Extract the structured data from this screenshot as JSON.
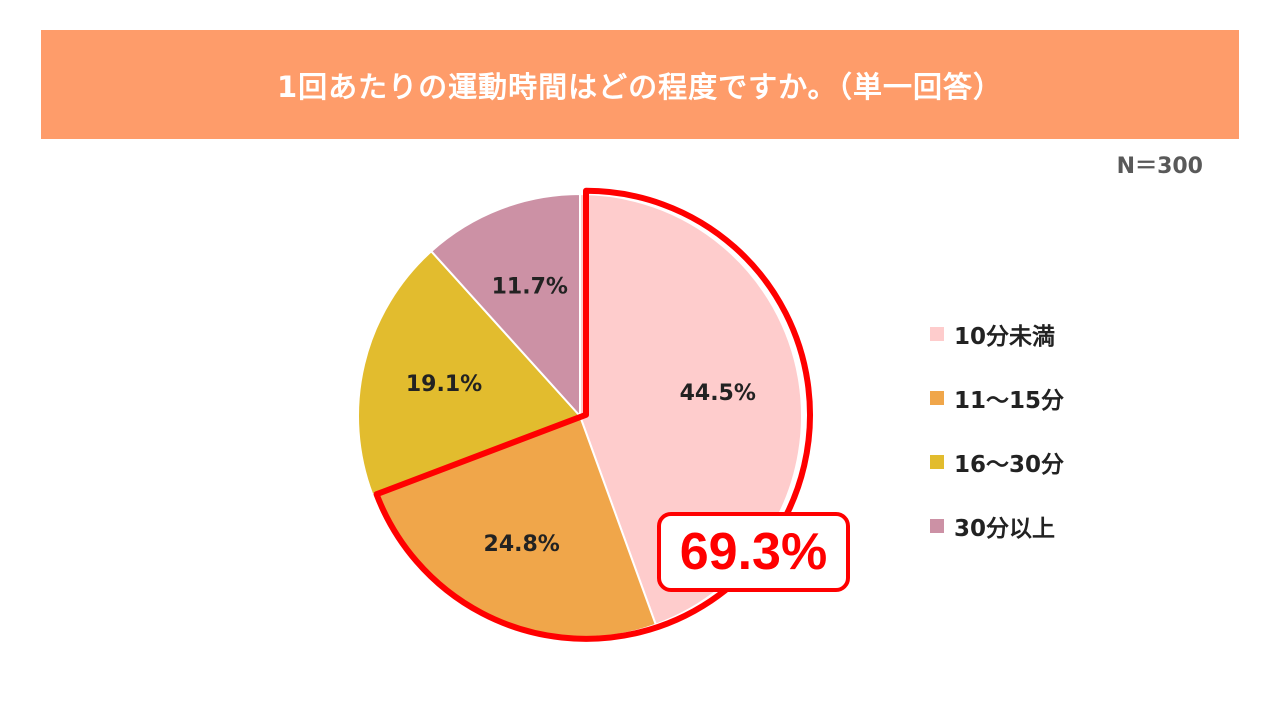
{
  "header": {
    "title": "1回あたりの運動時間はどの程度ですか。（単一回答）"
  },
  "sample_size": "N＝300",
  "colors": {
    "banner": "#fe9c6a",
    "highlight": "#ff0000",
    "divider": "#ffffff"
  },
  "callout": {
    "value": "69.3%"
  },
  "chart_data": {
    "type": "pie",
    "title": "1回あたりの運動時間はどの程度ですか。（単一回答）",
    "start": "12 o'clock, clockwise",
    "legend_position": "right",
    "highlighted_group": [
      "10分未満",
      "11～15分"
    ],
    "highlighted_total": 69.3,
    "slices": [
      {
        "label": "10分未満",
        "value": 44.5,
        "value_label": "44.5%",
        "color": "#fecccc"
      },
      {
        "label": "11～15分",
        "value": 24.8,
        "value_label": "24.8%",
        "color": "#f0a64a"
      },
      {
        "label": "16～30分",
        "value": 19.1,
        "value_label": "19.1%",
        "color": "#e2bc2e"
      },
      {
        "label": "30分以上",
        "value": 11.7,
        "value_label": "11.7%",
        "color": "#cc91a5"
      }
    ]
  }
}
